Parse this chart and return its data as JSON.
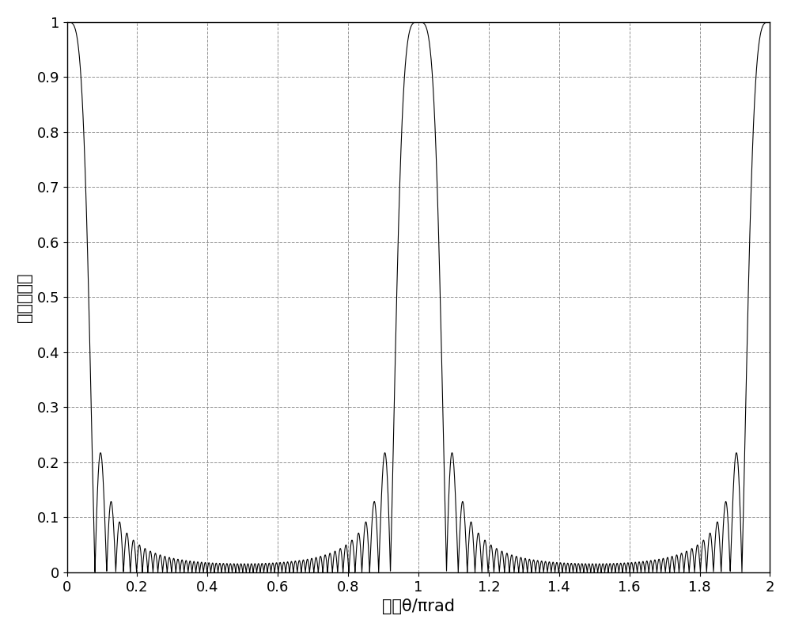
{
  "xlabel": "角度θ/πrad",
  "ylabel": "归一化幅値",
  "xlim": [
    0,
    2
  ],
  "ylim": [
    0,
    1
  ],
  "xticks": [
    0,
    0.2,
    0.4,
    0.6,
    0.8,
    1.0,
    1.2,
    1.4,
    1.6,
    1.8,
    2.0
  ],
  "yticks": [
    0,
    0.1,
    0.2,
    0.3,
    0.4,
    0.5,
    0.6,
    0.7,
    0.8,
    0.9,
    1.0
  ],
  "line_color": "#000000",
  "background_color": "#ffffff",
  "grid_color": "#888888",
  "grid_linestyle": "--",
  "N": 16,
  "target_theta_pi": 1.0,
  "n_points": 8000,
  "linewidth": 0.8,
  "xlabel_fontsize": 15,
  "ylabel_fontsize": 15,
  "tick_fontsize": 13
}
